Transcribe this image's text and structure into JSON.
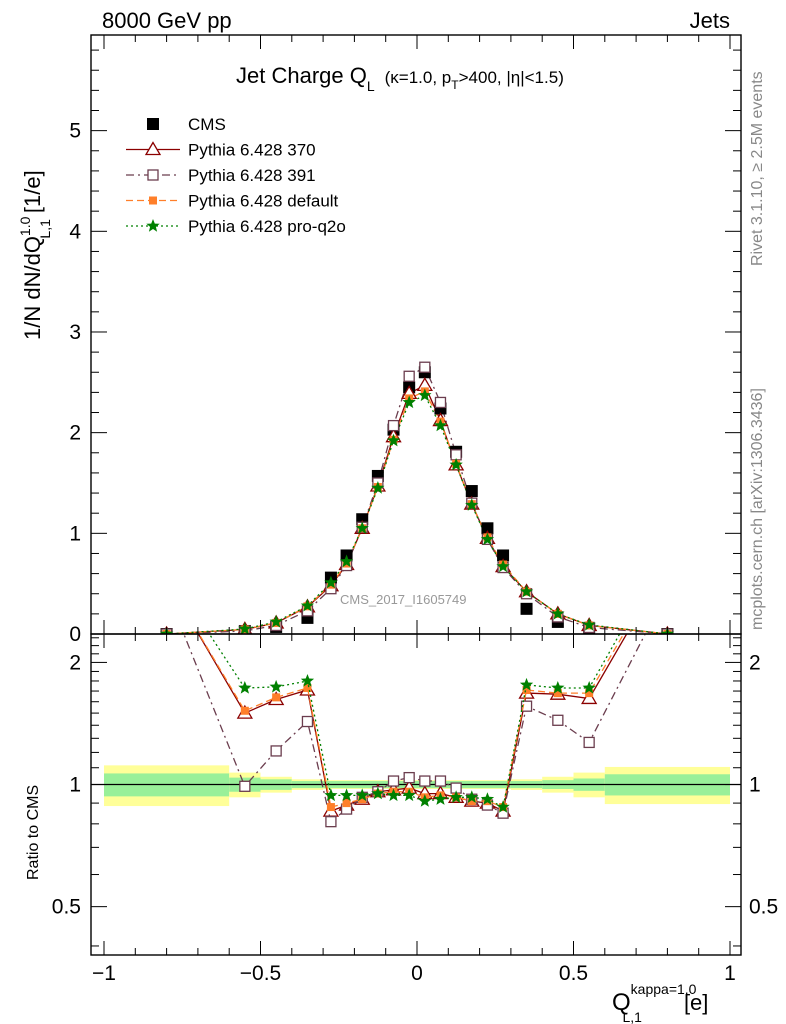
{
  "header": {
    "left": "8000 GeV pp",
    "right": "Jets",
    "plot_title": "Jet Charge Q",
    "plot_title_sub": "L",
    "plot_title_rest_a": "(κ=1.0, p",
    "plot_title_rest_sub": "T",
    "plot_title_rest_b": ">400, |η|<1.5)"
  },
  "side": {
    "rivet": "Rivet 3.1.10, ≥ 2.5M events",
    "mcplots": "mcplots.cern.ch [arXiv:1306.3436]"
  },
  "watermark": "CMS_2017_I1605749",
  "y_title_main": "1/N dN/dQ",
  "y_title_main_sup": "1.0",
  "y_title_main_sub": "L,1",
  "y_title_main_unit": "[1/e]",
  "y_title_ratio": "Ratio to CMS",
  "x_title": "Q",
  "x_title_sup": "kappa=1.0",
  "x_title_sub": "L,1",
  "x_title_unit": "[e]",
  "chart_data": [
    {
      "type": "line",
      "panel": "main",
      "xlim": [
        -1.0,
        1.0
      ],
      "ylim": [
        0,
        5.95
      ],
      "x_ticks": [
        -1,
        -0.5,
        0,
        0.5,
        1
      ],
      "x_tick_labels": [
        "−1",
        "−0.5",
        "0",
        "0.5",
        "1"
      ],
      "y_ticks": [
        0,
        1,
        2,
        3,
        4,
        5
      ],
      "y_tick_labels": [
        "0",
        "1",
        "2",
        "3",
        "4",
        "5"
      ],
      "legend_position": "top-left",
      "x": [
        -0.8,
        -0.55,
        -0.45,
        -0.35,
        -0.275,
        -0.225,
        -0.175,
        -0.125,
        -0.075,
        -0.025,
        0.025,
        0.075,
        0.125,
        0.175,
        0.225,
        0.275,
        0.35,
        0.45,
        0.55,
        0.8
      ],
      "series": [
        {
          "name": "CMS",
          "style": "marker-square",
          "color": "#000000",
          "values": [
            0.0,
            0.03,
            0.07,
            0.16,
            0.56,
            0.78,
            1.14,
            1.57,
            2.03,
            2.45,
            2.6,
            2.24,
            1.81,
            1.42,
            1.05,
            0.78,
            0.25,
            0.12,
            0.05,
            0.0
          ]
        },
        {
          "name": "Pythia 6.428 370",
          "style": "triangle",
          "color": "#8b0000",
          "values": [
            0.0,
            0.045,
            0.11,
            0.27,
            0.48,
            0.69,
            1.05,
            1.47,
            1.96,
            2.39,
            2.47,
            2.12,
            1.68,
            1.29,
            0.95,
            0.67,
            0.42,
            0.2,
            0.085,
            0.0
          ]
        },
        {
          "name": "Pythia 6.428 391",
          "style": "open-square",
          "color": "#6b3d4e",
          "values": [
            0.0,
            0.03,
            0.085,
            0.23,
            0.45,
            0.68,
            1.06,
            1.5,
            2.07,
            2.56,
            2.65,
            2.3,
            1.78,
            1.3,
            0.94,
            0.66,
            0.4,
            0.17,
            0.065,
            0.0
          ]
        },
        {
          "name": "Pythia 6.428 default",
          "style": "filled-square",
          "color": "#ff7f2a",
          "values": [
            0.0,
            0.046,
            0.11,
            0.275,
            0.49,
            0.7,
            1.05,
            1.46,
            1.93,
            2.34,
            2.41,
            2.11,
            1.69,
            1.29,
            0.96,
            0.69,
            0.42,
            0.2,
            0.085,
            0.0
          ]
        },
        {
          "name": "Pythia 6.428 pro-q2o",
          "style": "star",
          "color": "#008000",
          "values": [
            0.0,
            0.05,
            0.12,
            0.28,
            0.51,
            0.72,
            1.05,
            1.45,
            1.92,
            2.3,
            2.37,
            2.07,
            1.68,
            1.28,
            0.94,
            0.67,
            0.42,
            0.2,
            0.09,
            0.0
          ]
        }
      ]
    },
    {
      "type": "line",
      "panel": "ratio",
      "xlim": [
        -1.0,
        1.0
      ],
      "ylim": [
        0.38,
        2.35
      ],
      "y_ticks": [
        0.5,
        1,
        2
      ],
      "y_tick_labels": [
        "0.5",
        "1",
        "2"
      ],
      "x": [
        -0.8,
        -0.55,
        -0.45,
        -0.35,
        -0.275,
        -0.225,
        -0.175,
        -0.125,
        -0.075,
        -0.025,
        0.025,
        0.075,
        0.125,
        0.175,
        0.225,
        0.275,
        0.35,
        0.45,
        0.55,
        0.8
      ],
      "band_edges": [
        -1.0,
        -0.6,
        -0.5,
        -0.4,
        -0.3,
        0.3,
        0.4,
        0.5,
        0.6,
        1.0
      ],
      "band_green_halfwidth": [
        0.065,
        0.04,
        0.03,
        0.02,
        0.02,
        0.02,
        0.025,
        0.035,
        0.06
      ],
      "band_yellow_halfwidth": [
        0.115,
        0.07,
        0.045,
        0.03,
        0.025,
        0.03,
        0.045,
        0.07,
        0.105
      ],
      "band_colors": {
        "green": "#99f099",
        "yellow": "#ffff99"
      },
      "series": [
        {
          "name": "Pythia 6.428 370",
          "style": "triangle",
          "color": "#8b0000",
          "values": [
            3.2,
            1.5,
            1.62,
            1.71,
            0.86,
            0.89,
            0.92,
            0.96,
            0.97,
            0.98,
            0.95,
            0.95,
            0.93,
            0.91,
            0.9,
            0.86,
            1.68,
            1.67,
            1.63,
            3.5
          ]
        },
        {
          "name": "Pythia 6.428 391",
          "style": "open-square",
          "color": "#6b3d4e",
          "values": [
            3.0,
            0.99,
            1.21,
            1.43,
            0.81,
            0.87,
            0.93,
            0.96,
            1.02,
            1.04,
            1.02,
            1.02,
            0.98,
            0.92,
            0.89,
            0.85,
            1.56,
            1.44,
            1.27,
            3.0
          ]
        },
        {
          "name": "Pythia 6.428 default",
          "style": "filled-square",
          "color": "#ff7f2a",
          "values": [
            3.2,
            1.52,
            1.64,
            1.73,
            0.88,
            0.9,
            0.92,
            0.95,
            0.96,
            0.96,
            0.93,
            0.94,
            0.93,
            0.91,
            0.91,
            0.88,
            1.71,
            1.68,
            1.68,
            3.6
          ]
        },
        {
          "name": "Pythia 6.428 pro-q2o",
          "style": "star",
          "color": "#008000",
          "values": [
            3.4,
            1.73,
            1.74,
            1.8,
            0.94,
            0.94,
            0.94,
            0.95,
            0.94,
            0.94,
            0.91,
            0.92,
            0.93,
            0.93,
            0.92,
            0.88,
            1.76,
            1.73,
            1.73,
            3.8
          ]
        }
      ]
    }
  ]
}
